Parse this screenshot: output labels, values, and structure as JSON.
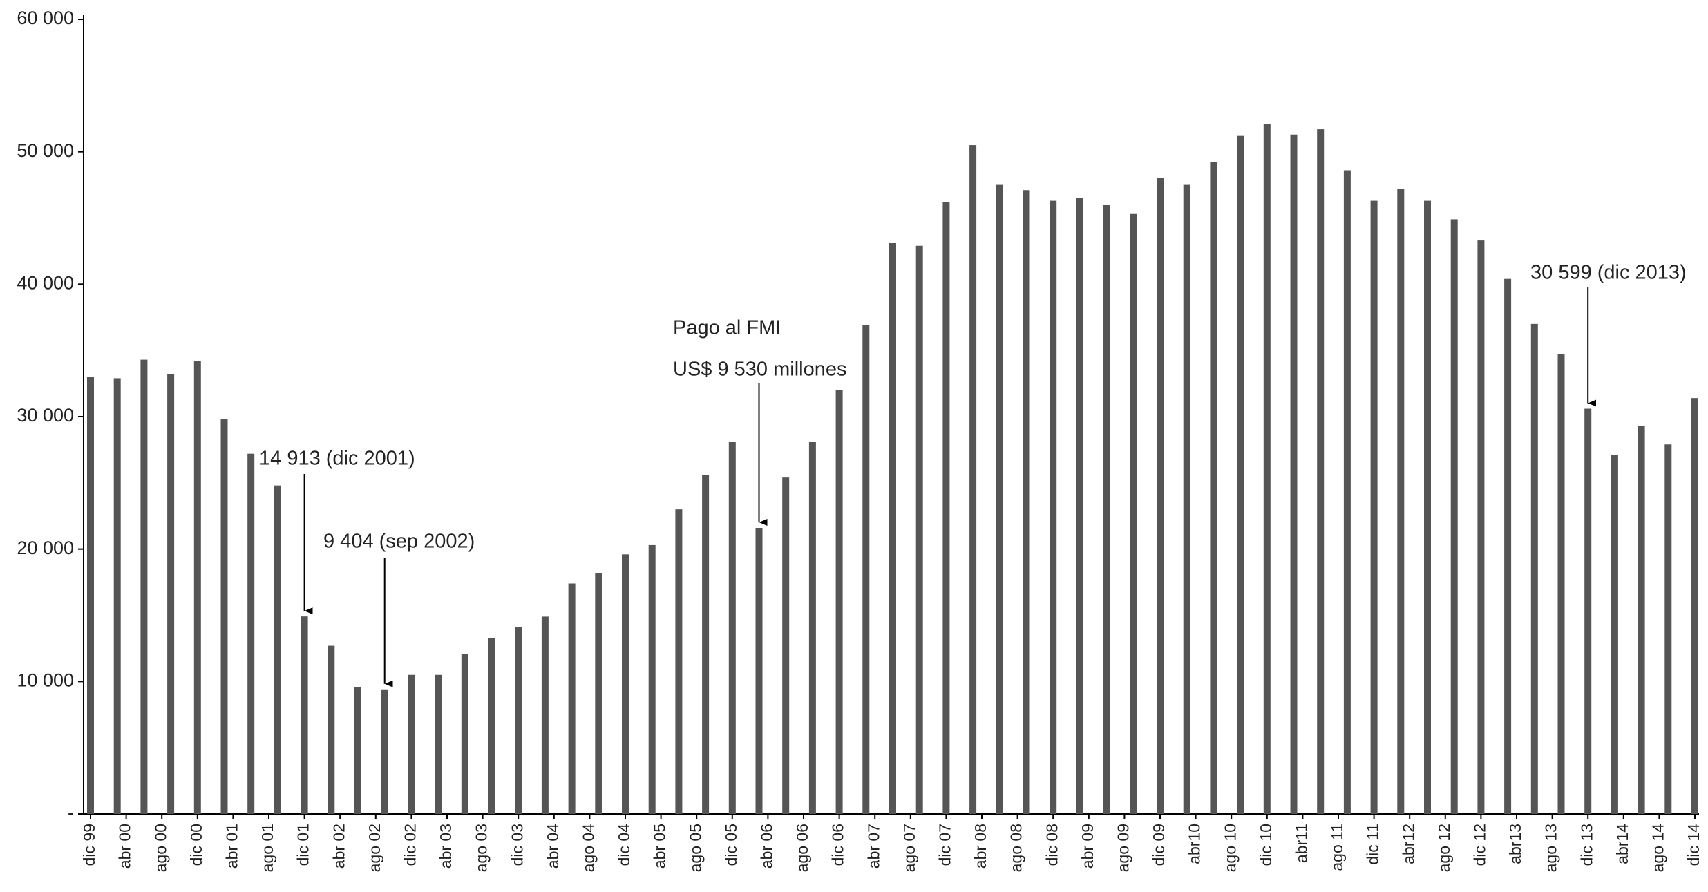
{
  "chart_data": {
    "type": "bar",
    "color": "#555555",
    "values": [
      33000,
      32900,
      34300,
      33200,
      34200,
      29800,
      27200,
      24800,
      14913,
      12700,
      9600,
      9404,
      10500,
      10500,
      12100,
      13300,
      14100,
      14900,
      17400,
      18200,
      19600,
      20300,
      23000,
      25600,
      28100,
      21600,
      25400,
      28100,
      32000,
      36900,
      43100,
      42900,
      46200,
      50500,
      47500,
      47100,
      46300,
      46500,
      46000,
      45300,
      48000,
      47500,
      49200,
      51200,
      52100,
      51300,
      51700,
      48600,
      46300,
      47200,
      46300,
      44900,
      43300,
      40400,
      37000,
      34700,
      30599,
      27100,
      29300,
      27900,
      31400
    ],
    "x_tick_labels": [
      "dic 99",
      "abr 00",
      "ago 00",
      "dic 00",
      "abr 01",
      "ago 01",
      "dic 01",
      "abr 02",
      "ago 02",
      "dic 02",
      "abr 03",
      "ago 03",
      "dic 03",
      "abr 04",
      "ago 04",
      "dic 04",
      "abr 05",
      "ago 05",
      "dic 05",
      "abr 06",
      "ago 06",
      "dic 06",
      "abr 07",
      "ago 07",
      "dic 07",
      "abr 08",
      "ago 08",
      "dic 08",
      "abr 09",
      "ago 09",
      "dic 09",
      "abr10",
      "ago 10",
      "dic 10",
      "abr11",
      "ago 11",
      "dic 11",
      "abr12",
      "ago 12",
      "dic 12",
      "abr13",
      "ago 13",
      "dic 13",
      "abr14",
      "ago 14",
      "dic 14"
    ],
    "ylim": [
      0,
      60000
    ],
    "yticks": [
      {
        "value": 0,
        "label": "-"
      },
      {
        "value": 10000,
        "label": "10 000"
      },
      {
        "value": 20000,
        "label": "20 000"
      },
      {
        "value": 30000,
        "label": "30 000"
      },
      {
        "value": 40000,
        "label": "40 000"
      },
      {
        "value": 50000,
        "label": "50 000"
      },
      {
        "value": 60000,
        "label": "60 000"
      }
    ],
    "grid": false,
    "annotations": [
      [
        "14 913 (dic 2001)"
      ],
      [
        "9 404 (sep 2002)"
      ],
      [
        "Pago al FMI",
        "US$ 9 530 millones"
      ],
      [
        "30 599 (dic 2013)"
      ]
    ]
  }
}
